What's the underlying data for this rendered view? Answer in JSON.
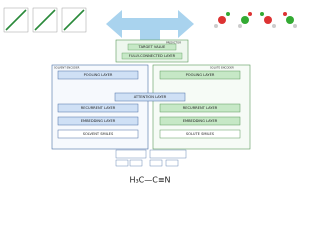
{
  "predictor": {
    "title": "PREDICTOR",
    "target": "TARGET VALUE",
    "fc": "FULLY-CONNECTED LAYER"
  },
  "solvent": {
    "title": "SOLVENT ENCODER",
    "pooling": "POOLING LAYER",
    "recurrent": "RECURRENT LAYER",
    "embedding": "EMBEDDING LAYER",
    "smiles": "SOLVENT SMILES"
  },
  "solute": {
    "title": "SOLUTE ENCODER",
    "pooling": "POOLING LAYER",
    "recurrent": "RECURRENT LAYER",
    "embedding": "EMBEDDING LAYER",
    "smiles": "SOLUTE SMILES"
  },
  "attention": "ATTENTION LAYER",
  "molecule": "H₃C—C≡N"
}
